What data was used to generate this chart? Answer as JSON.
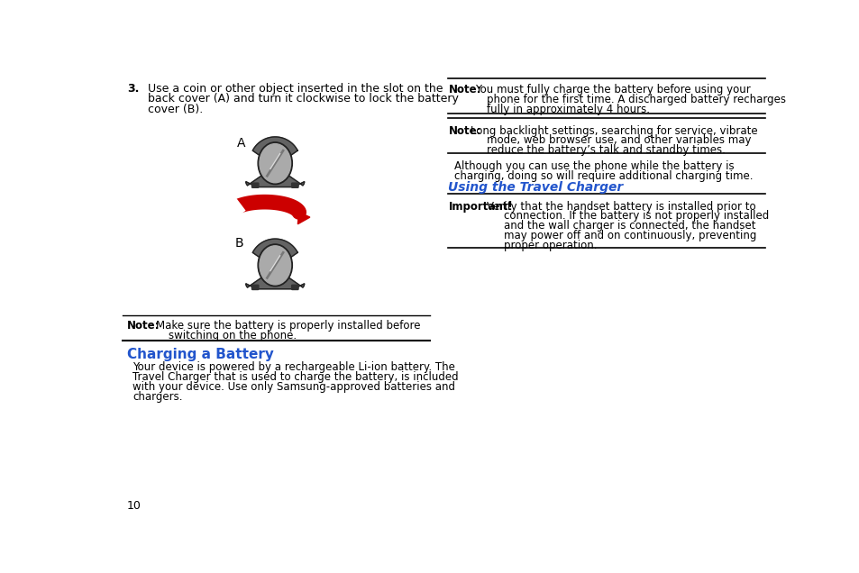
{
  "bg_color": "#ffffff",
  "text_color": "#000000",
  "blue_color": "#2255cc",
  "page_number": "10",
  "left_col": {
    "step3_bold": "3.",
    "step3_line1": "Use a coin or other object inserted in the slot on the",
    "step3_line2": "back cover (A) and turn it clockwise to lock the battery",
    "step3_line3": "cover (B).",
    "label_A": "A",
    "label_B": "B",
    "note1_bold": "Note:",
    "note1_line1": "  Make sure the battery is properly installed before",
    "note1_line2": "       switching on the phone.",
    "section_title": "Charging a Battery",
    "section_line1": "Your device is powered by a rechargeable Li-ion battery. The",
    "section_line2": "Travel Charger that is used to charge the battery, is included",
    "section_line3": "with your device. Use only Samsung-approved batteries and",
    "section_line4": "chargers."
  },
  "right_col": {
    "note2_bold": "Note:",
    "note2_line1": "  You must fully charge the battery before using your",
    "note2_line2": "        phone for the first time. A discharged battery recharges",
    "note2_line3": "        fully in approximately 4 hours.",
    "note3_bold": "Note:",
    "note3_line1": " Long backlight settings, searching for service, vibrate",
    "note3_line2": "       mode, web browser use, and other variables may",
    "note3_line3": "       reduce the battery’s talk and standby times.",
    "para1_line1": "  Although you can use the phone while the battery is",
    "para1_line2": "  charging, doing so will require additional charging time.",
    "subheading": "Using the Travel Charger",
    "imp_bold": "Important!",
    "imp_line1": " Verify that the handset battery is installed prior to",
    "imp_line2": "              connection. If the battery is not properly installed",
    "imp_line3": "              and the wall charger is connected, the handset",
    "imp_line4": "              may power off and on continuously, preventing",
    "imp_line5": "              proper operation."
  },
  "icon": {
    "body_color": "#636363",
    "body_outline": "#222222",
    "inner_color": "#aaaaaa",
    "inner_highlight": "#cccccc",
    "slot_line_color": "#888888",
    "nub_color": "#333333"
  }
}
